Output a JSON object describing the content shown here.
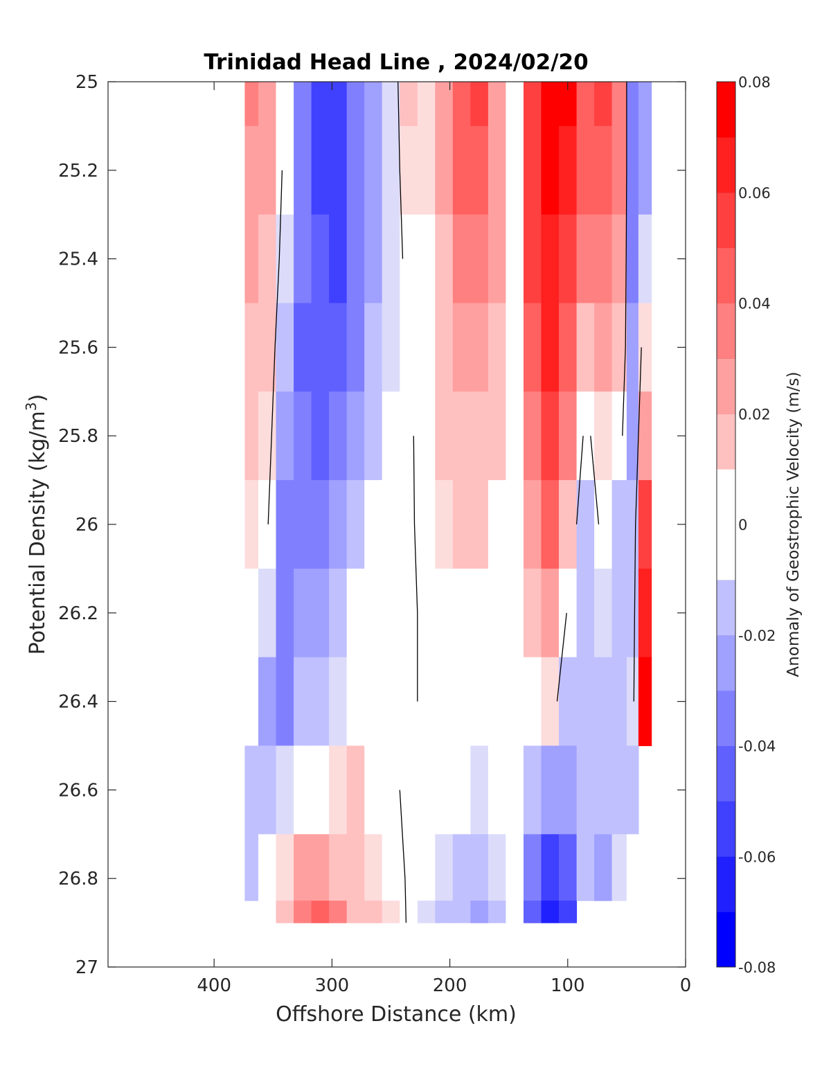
{
  "chart_data": {
    "type": "heatmap",
    "title": "Trinidad Head Line , 2024/02/20",
    "xlabel": "Offshore Distance (km)",
    "ylabel": "Potential Density (kg/m",
    "ylabel_sup": "3",
    "ylabel_close": ")",
    "colorbar_label": "Anomaly of Geostrophic Velocity (m/s)",
    "x_reversed": true,
    "y_reversed": true,
    "xlim": [
      490,
      0
    ],
    "ylim": [
      25,
      27
    ],
    "xticks": [
      400,
      300,
      200,
      100,
      0
    ],
    "xtick_labels": [
      "400",
      "300",
      "200",
      "100",
      "0"
    ],
    "yticks": [
      25,
      25.2,
      25.4,
      25.6,
      25.8,
      26,
      26.2,
      26.4,
      26.6,
      26.8,
      27
    ],
    "ytick_labels": [
      "25",
      "25.2",
      "25.4",
      "25.6",
      "25.8",
      "26",
      "26.2",
      "26.4",
      "26.6",
      "26.8",
      "27"
    ],
    "colorbar": {
      "range": [
        -0.08,
        0.08
      ],
      "levels": [
        -0.08,
        -0.07,
        -0.06,
        -0.05,
        -0.04,
        -0.03,
        -0.02,
        -0.01,
        0,
        0.01,
        0.02,
        0.03,
        0.04,
        0.05,
        0.06,
        0.07,
        0.08
      ],
      "tick_values": [
        0.08,
        0.06,
        0.04,
        0.02,
        0,
        -0.02,
        -0.04,
        -0.06,
        -0.08
      ],
      "tick_labels": [
        "0.08",
        "0.06",
        "0.04",
        "0.02",
        "0",
        "-0.02",
        "-0.04",
        "-0.06",
        "-0.08"
      ],
      "colors": [
        "#0000ff",
        "#2020ff",
        "#4040ff",
        "#6060ff",
        "#8080ff",
        "#a0a0ff",
        "#c0c0ff",
        "#dcdcfa",
        "#ffffff",
        "#fddcdc",
        "#ffc0c0",
        "#ffa0a0",
        "#ff8080",
        "#ff6060",
        "#ff4040",
        "#ff2020",
        "#ff0000"
      ]
    },
    "columns_km": [
      370,
      355,
      340,
      325,
      310,
      295,
      280,
      265,
      250,
      235,
      220,
      205,
      190,
      175,
      160,
      145,
      130,
      115,
      100,
      85,
      70,
      55,
      45,
      35
    ],
    "density_levels": [
      25.0,
      25.2,
      25.4,
      25.6,
      25.8,
      26.0,
      26.2,
      26.4,
      26.6,
      26.8,
      26.9
    ],
    "velocity_anomaly": [
      [
        0.035,
        0.03,
        0.025,
        0.02,
        0.016,
        0.012,
        0.008,
        0.0,
        -0.015,
        -0.015,
        null
      ],
      [
        0.03,
        0.028,
        0.022,
        0.016,
        0.01,
        0.002,
        -0.01,
        -0.03,
        -0.015,
        -0.005,
        null
      ],
      [
        0.002,
        -0.005,
        -0.01,
        -0.02,
        -0.03,
        -0.035,
        -0.04,
        -0.035,
        -0.01,
        0.01,
        0.02
      ],
      [
        -0.04,
        -0.04,
        -0.04,
        -0.045,
        -0.04,
        -0.035,
        -0.032,
        -0.022,
        -0.002,
        0.025,
        0.035
      ],
      [
        -0.055,
        -0.055,
        -0.05,
        -0.05,
        -0.045,
        -0.04,
        -0.03,
        -0.02,
        0.002,
        0.03,
        0.045
      ],
      [
        -0.06,
        -0.06,
        -0.055,
        -0.045,
        -0.04,
        -0.025,
        -0.015,
        -0.01,
        0.01,
        0.02,
        0.04
      ],
      [
        -0.04,
        -0.04,
        -0.04,
        -0.035,
        -0.025,
        -0.015,
        -0.005,
        0.005,
        0.018,
        0.02,
        0.018
      ],
      [
        -0.03,
        -0.03,
        -0.025,
        -0.02,
        -0.015,
        -0.005,
        0.0,
        0.005,
        0.008,
        0.01,
        0.015
      ],
      [
        -0.01,
        -0.01,
        -0.01,
        -0.01,
        -0.008,
        -0.005,
        0.0,
        0.0,
        0.002,
        0.008,
        0.012
      ],
      [
        0.015,
        0.01,
        0.005,
        0.0,
        -0.002,
        -0.002,
        -0.002,
        -0.002,
        -0.002,
        -0.002,
        -0.002
      ],
      [
        0.012,
        0.012,
        0.008,
        0.005,
        0.005,
        0.004,
        0.002,
        0.002,
        -0.002,
        -0.005,
        -0.01
      ],
      [
        0.025,
        0.025,
        0.022,
        0.02,
        0.016,
        0.013,
        0.005,
        0.0,
        -0.005,
        -0.01,
        -0.015
      ],
      [
        0.045,
        0.045,
        0.04,
        0.03,
        0.022,
        0.015,
        0.002,
        0.0,
        -0.005,
        -0.015,
        -0.022
      ],
      [
        0.055,
        0.05,
        0.042,
        0.03,
        0.022,
        0.015,
        0.005,
        0.0,
        -0.012,
        -0.02,
        -0.03
      ],
      [
        0.03,
        0.03,
        0.028,
        0.022,
        0.015,
        0.008,
        0.002,
        0.0,
        -0.008,
        -0.012,
        -0.015
      ],
      [
        0.0,
        -0.002,
        0.0,
        0.002,
        0.005,
        0.005,
        0.002,
        0.0,
        -0.002,
        -0.005,
        -0.005
      ],
      [
        0.06,
        0.058,
        0.055,
        0.045,
        0.035,
        0.025,
        0.015,
        0.005,
        -0.02,
        -0.04,
        -0.045
      ],
      [
        0.08,
        0.075,
        0.07,
        0.065,
        0.055,
        0.045,
        0.03,
        0.01,
        -0.03,
        -0.06,
        -0.065
      ],
      [
        0.075,
        0.07,
        0.06,
        0.05,
        0.035,
        0.015,
        -0.002,
        -0.015,
        -0.03,
        -0.05,
        -0.06
      ],
      [
        0.05,
        0.045,
        0.035,
        0.02,
        -0.005,
        -0.015,
        -0.015,
        -0.015,
        -0.015,
        -0.02,
        null
      ],
      [
        0.055,
        0.05,
        0.04,
        0.025,
        0.012,
        0.005,
        -0.01,
        -0.015,
        -0.02,
        -0.025,
        null
      ],
      [
        0.04,
        0.035,
        0.03,
        0.02,
        0.005,
        -0.015,
        -0.018,
        -0.015,
        -0.02,
        -0.01,
        null
      ],
      [
        -0.04,
        -0.035,
        -0.035,
        -0.03,
        -0.03,
        -0.02,
        -0.015,
        -0.01,
        -0.015,
        0.005,
        null
      ],
      [
        -0.03,
        -0.025,
        -0.01,
        0.01,
        0.03,
        0.06,
        0.07,
        0.08,
        null,
        null,
        null
      ]
    ]
  }
}
